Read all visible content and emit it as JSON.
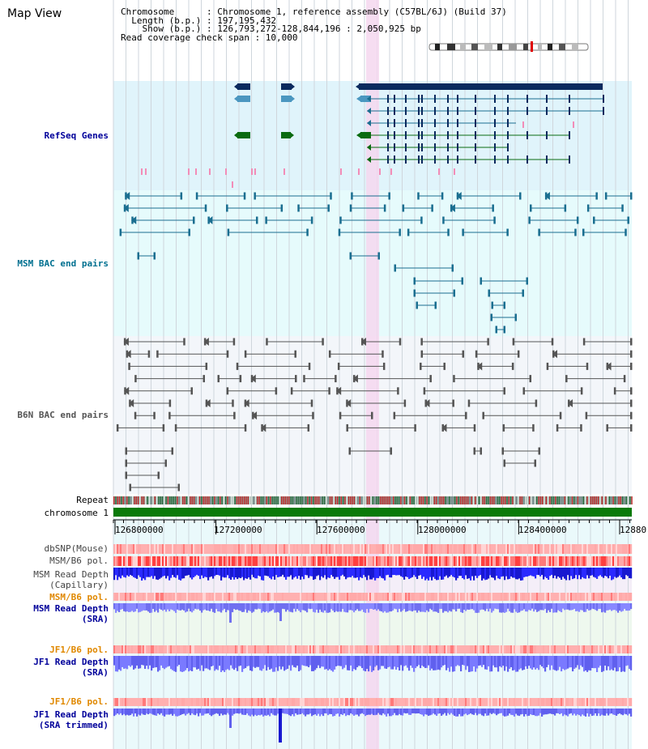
{
  "title": "Map View",
  "header": {
    "line1": "Chromosome      : Chromosome 1, reference assembly (C57BL/6J) (Build 37)",
    "line2": "Length (b.p.) : 197,195,432",
    "line3": "Show (b.p.) : 126,793,272-128,844,196 : 2,050,925 bp",
    "line4": "Read coverage check span : 10,000"
  },
  "tracks": {
    "refseq": "RefSeq Genes",
    "msm_bac": "MSM BAC end pairs",
    "b6n_bac": "B6N BAC end pairs",
    "repeat": "Repeat",
    "chromosome": "chromosome 1",
    "dbsnp": "dbSNP(Mouse)",
    "msm_b6_pol_1": "MSM/B6 pol.",
    "msm_read_depth_cap": "MSM Read Depth",
    "msm_read_depth_cap2": "(Capillary)",
    "msm_b6_pol_2": "MSM/B6 pol.",
    "msm_read_depth_sra": "MSM Read Depth",
    "msm_read_depth_sra2": "(SRA)",
    "jf1_b6_pol_1": "JF1/B6 pol.",
    "jf1_read_depth_sra": "JF1 Read Depth",
    "jf1_read_depth_sra2": "(SRA)",
    "jf1_b6_pol_2": "JF1/B6 pol.",
    "jf1_read_depth_trim": "JF1 Read Depth",
    "jf1_read_depth_trim2": "(SRA trimmed)"
  },
  "axis": {
    "ticks": [
      "126800000",
      "127200000",
      "127600000",
      "128000000",
      "128400000",
      "12880"
    ]
  },
  "colors": {
    "refseq_bg": "#e0f4fb",
    "msm_bg": "#e6fbfc",
    "b6n_bg": "#f3f6fa",
    "highlight": "#f5d7ee",
    "blue_label": "#00009a",
    "teal_label": "#007090",
    "orange_label": "#e08800",
    "gene_navy": "#0a2a5e",
    "gene_blue": "#4b97c0",
    "gene_green": "#0a6b10",
    "msm_line": "#1a6e90",
    "b6n_line": "#555555",
    "chromosome_bar": "#0a7a0a"
  }
}
